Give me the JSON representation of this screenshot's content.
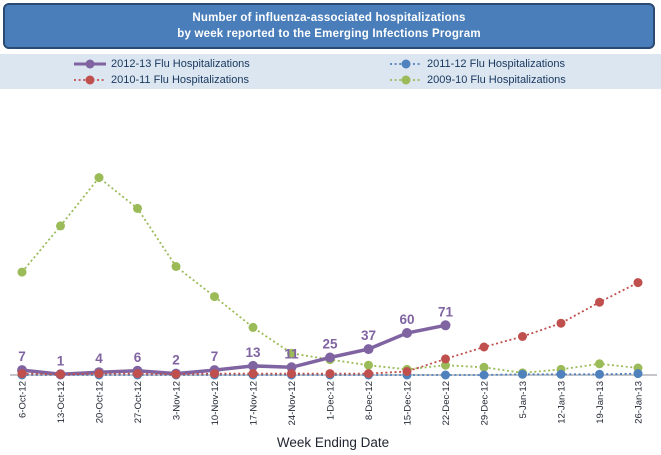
{
  "title": {
    "line1": "Number of influenza-associated hospitalizations",
    "line2": "by week reported to the Emerging Infections Program",
    "bg_color": "#4A7EBB",
    "border_color": "#2A4A73",
    "text_color": "#FFFFFF"
  },
  "legend": {
    "bg_color": "#DCE6F1",
    "text_color": "#17375E",
    "items": [
      {
        "label": "2012-13 Flu Hospitalizations",
        "color": "#8064A2",
        "style": "solid"
      },
      {
        "label": "2011-12 Flu Hospitalizations",
        "color": "#4F81BD",
        "style": "dotted"
      },
      {
        "label": "2010-11 Flu Hospitalizations",
        "color": "#C0504D",
        "style": "dotted"
      },
      {
        "label": "2009-10 Flu Hospitalizations",
        "color": "#9BBB59",
        "style": "dotted"
      }
    ]
  },
  "chart_data": {
    "type": "line",
    "title": "Number of influenza-associated hospitalizations by week reported to the Emerging Infections Program",
    "xlabel": "Week Ending Date",
    "ylabel": "",
    "ylim": [
      0,
      290
    ],
    "grid": false,
    "y_axis_shown": false,
    "legend_position": "top",
    "categories": [
      "6-Oct-12",
      "13-Oct-12",
      "20-Oct-12",
      "27-Oct-12",
      "3-Nov-12",
      "10-Nov-12",
      "17-Nov-12",
      "24-Nov-12",
      "1-Dec-12",
      "8-Dec-12",
      "15-Dec-12",
      "22-Dec-12",
      "29-Dec-12",
      "5-Jan-13",
      "12-Jan-13",
      "19-Jan-13",
      "26-Jan-13"
    ],
    "series": [
      {
        "name": "2012-13 Flu Hospitalizations",
        "color": "#8064A2",
        "line_style": "solid",
        "data_labels": true,
        "values": [
          7,
          1,
          4,
          6,
          2,
          7,
          13,
          11,
          25,
          37,
          60,
          71,
          null,
          null,
          null,
          null,
          null
        ]
      },
      {
        "name": "2011-12 Flu Hospitalizations",
        "color": "#4F81BD",
        "line_style": "dotted",
        "data_labels": false,
        "values": [
          0,
          0,
          0,
          0,
          0,
          0,
          0,
          0,
          0,
          0,
          0,
          0,
          0,
          1,
          1,
          1,
          2
        ]
      },
      {
        "name": "2010-11 Flu Hospitalizations",
        "color": "#C0504D",
        "line_style": "dotted",
        "data_labels": false,
        "values": [
          2,
          1,
          2,
          2,
          1,
          2,
          2,
          2,
          2,
          2,
          5,
          23,
          40,
          55,
          74,
          104,
          132
        ]
      },
      {
        "name": "2009-10 Flu Hospitalizations",
        "color": "#9BBB59",
        "line_style": "dotted",
        "data_labels": false,
        "values": [
          147,
          213,
          282,
          238,
          155,
          112,
          68,
          31,
          22,
          14,
          8,
          14,
          11,
          3,
          8,
          16,
          10
        ]
      }
    ]
  }
}
